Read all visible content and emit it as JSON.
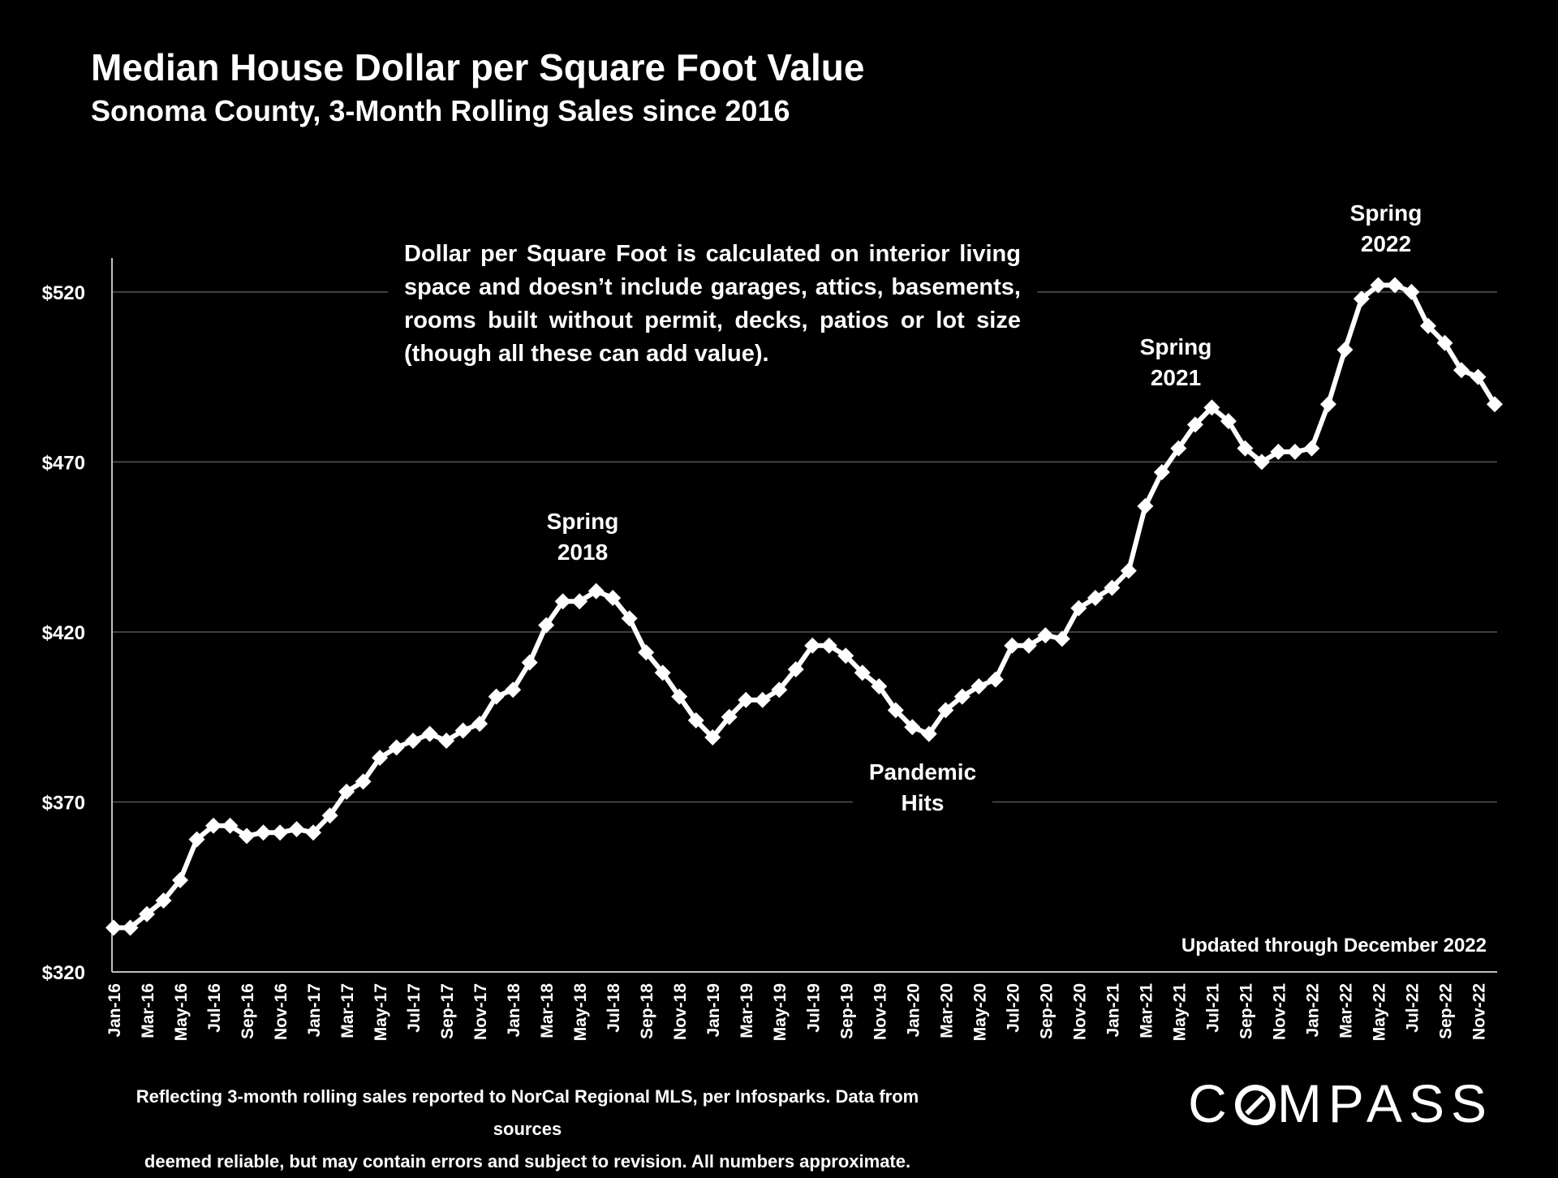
{
  "title": "Median House Dollar per Square Foot Value",
  "subtitle": "Sonoma County, 3-Month Rolling Sales since 2016",
  "note": "Dollar per Square Foot is calculated on interior living space and doesn’t include garages, attics, basements, rooms built without permit, decks, patios or lot size (though all these can add value).",
  "annotations": {
    "spring2018_a": "Spring",
    "spring2018_b": "2018",
    "spring2021_a": "Spring",
    "spring2021_b": "2021",
    "spring2022_a": "Spring",
    "spring2022_b": "2022",
    "pandemic_a": "Pandemic",
    "pandemic_b": "Hits"
  },
  "updated": "Updated through December 2022",
  "footnote_line1": "Reflecting 3-month rolling sales reported to NorCal Regional MLS, per Infosparks. Data from sources",
  "footnote_line2": "deemed reliable, but may contain errors and subject to revision. All numbers approximate.",
  "logo": {
    "left": "C",
    "right": "MPASS"
  },
  "colors": {
    "background": "#000000",
    "line": "#ffffff",
    "grid": "#555555"
  },
  "chart_data": {
    "type": "line",
    "title": "Median House Dollar per Square Foot Value",
    "subtitle": "Sonoma County, 3-Month Rolling Sales since 2016",
    "xlabel": "",
    "ylabel": "",
    "ylim": [
      320,
      530
    ],
    "yticks": [
      320,
      370,
      420,
      470,
      520
    ],
    "ytick_labels": [
      "$320",
      "$370",
      "$420",
      "$470",
      "$520"
    ],
    "grid": true,
    "x": [
      "Jan-16",
      "Feb-16",
      "Mar-16",
      "Apr-16",
      "May-16",
      "Jun-16",
      "Jul-16",
      "Aug-16",
      "Sep-16",
      "Oct-16",
      "Nov-16",
      "Dec-16",
      "Jan-17",
      "Feb-17",
      "Mar-17",
      "Apr-17",
      "May-17",
      "Jun-17",
      "Jul-17",
      "Aug-17",
      "Sep-17",
      "Oct-17",
      "Nov-17",
      "Dec-17",
      "Jan-18",
      "Feb-18",
      "Mar-18",
      "Apr-18",
      "May-18",
      "Jun-18",
      "Jul-18",
      "Aug-18",
      "Sep-18",
      "Oct-18",
      "Nov-18",
      "Dec-18",
      "Jan-19",
      "Feb-19",
      "Mar-19",
      "Apr-19",
      "May-19",
      "Jun-19",
      "Jul-19",
      "Aug-19",
      "Sep-19",
      "Oct-19",
      "Nov-19",
      "Dec-19",
      "Jan-20",
      "Feb-20",
      "Mar-20",
      "Apr-20",
      "May-20",
      "Jun-20",
      "Jul-20",
      "Aug-20",
      "Sep-20",
      "Oct-20",
      "Nov-20",
      "Dec-20",
      "Jan-21",
      "Feb-21",
      "Mar-21",
      "Apr-21",
      "May-21",
      "Jun-21",
      "Jul-21",
      "Aug-21",
      "Sep-21",
      "Oct-21",
      "Nov-21",
      "Dec-21",
      "Jan-22",
      "Feb-22",
      "Mar-22",
      "Apr-22",
      "May-22",
      "Jun-22",
      "Jul-22",
      "Aug-22",
      "Sep-22",
      "Oct-22",
      "Nov-22",
      "Dec-22"
    ],
    "x_tick_labels": [
      "Jan-16",
      "Mar-16",
      "May-16",
      "Jul-16",
      "Sep-16",
      "Nov-16",
      "Jan-17",
      "Mar-17",
      "May-17",
      "Jul-17",
      "Sep-17",
      "Nov-17",
      "Jan-18",
      "Mar-18",
      "May-18",
      "Jul-18",
      "Sep-18",
      "Nov-18",
      "Jan-19",
      "Mar-19",
      "May-19",
      "Jul-19",
      "Sep-19",
      "Nov-19",
      "Jan-20",
      "Mar-20",
      "May-20",
      "Jul-20",
      "Sep-20",
      "Nov-20",
      "Jan-21",
      "Mar-21",
      "May-21",
      "Jul-21",
      "Sep-21",
      "Nov-21",
      "Jan-22",
      "Mar-22",
      "May-22",
      "Jul-22",
      "Sep-22",
      "Nov-22"
    ],
    "series": [
      {
        "name": "Median $/SqFt",
        "values": [
          333,
          333,
          337,
          341,
          347,
          359,
          363,
          363,
          360,
          361,
          361,
          362,
          361,
          366,
          373,
          376,
          383,
          386,
          388,
          390,
          388,
          391,
          393,
          401,
          403,
          411,
          422,
          429,
          429,
          432,
          430,
          424,
          414,
          408,
          401,
          394,
          389,
          395,
          400,
          400,
          403,
          409,
          416,
          416,
          413,
          408,
          404,
          397,
          392,
          390,
          397,
          401,
          404,
          406,
          416,
          416,
          419,
          418,
          427,
          430,
          433,
          438,
          457,
          467,
          474,
          481,
          486,
          482,
          474,
          470,
          473,
          473,
          474,
          487,
          503,
          518,
          522,
          522,
          520,
          510,
          505,
          497,
          495,
          487
        ]
      }
    ]
  }
}
